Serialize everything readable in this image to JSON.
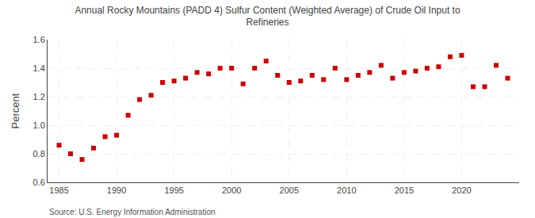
{
  "chart_data": {
    "type": "scatter",
    "title": "Annual Rocky Mountains (PADD 4) Sulfur Content (Weighted Average) of Crude Oil Input to\nRefineries",
    "ylabel": "Percent",
    "annotations": [
      "Source: U.S. Energy Information Administration"
    ],
    "x": [
      1985,
      1986,
      1987,
      1988,
      1989,
      1990,
      1991,
      1992,
      1993,
      1994,
      1995,
      1996,
      1997,
      1998,
      1999,
      2000,
      2001,
      2002,
      2003,
      2004,
      2005,
      2006,
      2007,
      2008,
      2009,
      2010,
      2011,
      2012,
      2013,
      2014,
      2015,
      2016,
      2017,
      2018,
      2019,
      2020,
      2021,
      2022,
      2023,
      2024
    ],
    "values": [
      0.86,
      0.8,
      0.76,
      0.84,
      0.92,
      0.93,
      1.07,
      1.18,
      1.21,
      1.3,
      1.31,
      1.33,
      1.37,
      1.36,
      1.4,
      1.4,
      1.29,
      1.4,
      1.45,
      1.35,
      1.3,
      1.31,
      1.35,
      1.32,
      1.4,
      1.32,
      1.35,
      1.37,
      1.42,
      1.33,
      1.37,
      1.38,
      1.4,
      1.41,
      1.48,
      1.49,
      1.27,
      1.27,
      1.42,
      1.33
    ],
    "color": "#cc0000",
    "marker": "square",
    "xlim": [
      1984,
      2025
    ],
    "xticks": [
      1985,
      1990,
      1995,
      2000,
      2005,
      2010,
      2015,
      2020
    ],
    "ylim": [
      0.6,
      1.6
    ],
    "yticks": [
      0.6,
      0.8,
      {
        "value": 1,
        "label": "1.0"
      },
      1.2,
      1.4,
      1.6
    ],
    "grid": true
  }
}
